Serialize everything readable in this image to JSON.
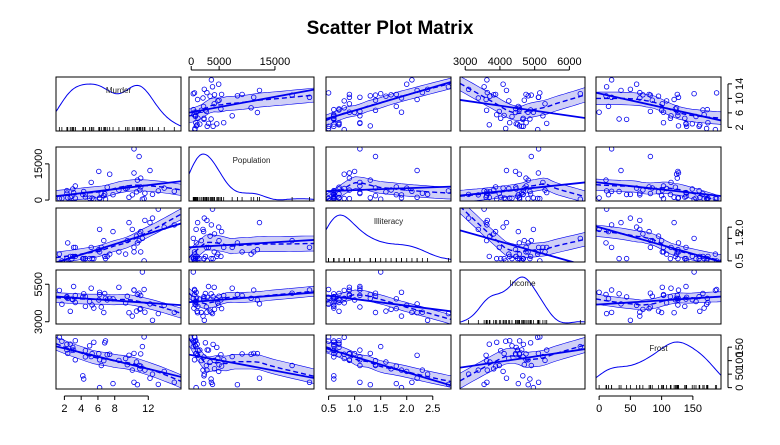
{
  "chart_data": {
    "type": "scatter",
    "title": "Scatter Plot Matrix",
    "variables": [
      "Murder",
      "Population",
      "Illiteracy",
      "Income",
      "Frost"
    ],
    "ranges": {
      "Murder": [
        1.0,
        15.9
      ],
      "Population": [
        -400,
        22000
      ],
      "Illiteracy": [
        0.45,
        2.85
      ],
      "Income": [
        2850,
        6450
      ],
      "Frost": [
        -5,
        195
      ]
    },
    "axis_ticks": {
      "top": [
        {
          "variable": "Population",
          "ticks": [
            0,
            5000,
            15000
          ]
        },
        {
          "variable": "Income",
          "ticks": [
            3000,
            4000,
            5000,
            6000
          ]
        }
      ],
      "bottom": [
        {
          "variable": "Murder",
          "ticks": [
            2,
            4,
            6,
            8,
            12
          ],
          "labels": [
            "2",
            "4",
            "6",
            "8",
            "12"
          ]
        },
        {
          "variable": "Illiteracy",
          "ticks": [
            0.5,
            1.0,
            1.5,
            2.0,
            2.5
          ],
          "labels": [
            "0.5",
            "1.0",
            "1.5",
            "2.0",
            "2.5"
          ]
        },
        {
          "variable": "Frost",
          "ticks": [
            0,
            50,
            100,
            150
          ],
          "labels": [
            "0",
            "50",
            "100",
            "150"
          ]
        }
      ],
      "left": [
        {
          "variable": "Population",
          "ticks": [
            0,
            15000
          ],
          "labels": [
            "0",
            "15000"
          ]
        },
        {
          "variable": "Income",
          "ticks": [
            3000,
            5500
          ],
          "labels": [
            "3000",
            "5500"
          ]
        }
      ],
      "right": [
        {
          "variable": "Murder",
          "ticks": [
            2,
            6,
            10,
            14
          ],
          "labels": [
            "2",
            "6",
            "10",
            "14"
          ]
        },
        {
          "variable": "Illiteracy",
          "ticks": [
            0.5,
            1.5,
            2.0
          ],
          "labels": [
            "0.5",
            "1.5",
            "2.0"
          ]
        },
        {
          "variable": "Frost",
          "ticks": [
            0,
            50,
            100,
            150
          ],
          "labels": [
            "0",
            "50",
            "100",
            "150"
          ]
        }
      ]
    },
    "data": {
      "Murder": [
        15.1,
        11.3,
        7.8,
        10.1,
        10.3,
        6.8,
        3.1,
        6.2,
        10.7,
        13.9,
        6.2,
        5.3,
        10.3,
        7.1,
        2.3,
        4.5,
        10.6,
        13.2,
        2.7,
        8.5,
        3.3,
        11.1,
        2.3,
        12.5,
        9.3,
        5.0,
        2.9,
        11.5,
        3.3,
        5.2,
        9.7,
        10.9,
        11.1,
        1.4,
        7.4,
        6.4,
        4.2,
        6.1,
        2.4,
        11.6,
        1.7,
        11.0,
        12.2,
        4.5,
        5.5,
        9.5,
        4.3,
        6.7,
        3.0,
        6.9
      ],
      "Population": [
        3615,
        365,
        2212,
        2110,
        21198,
        2541,
        3100,
        579,
        8277,
        4931,
        868,
        813,
        11197,
        5313,
        2861,
        2280,
        3387,
        3806,
        1058,
        4122,
        5814,
        9111,
        3921,
        2341,
        4767,
        746,
        1544,
        590,
        812,
        7333,
        1144,
        18076,
        5441,
        637,
        10735,
        2715,
        2284,
        11860,
        931,
        2816,
        681,
        4173,
        12237,
        1203,
        472,
        4981,
        3559,
        1799,
        4589,
        376
      ],
      "Illiteracy": [
        2.1,
        1.5,
        1.8,
        1.9,
        1.1,
        0.7,
        1.1,
        0.9,
        1.3,
        2.0,
        1.9,
        0.6,
        0.9,
        0.7,
        0.5,
        0.6,
        1.6,
        2.8,
        0.7,
        0.9,
        1.1,
        0.9,
        0.6,
        2.4,
        0.8,
        0.6,
        0.6,
        0.5,
        0.7,
        1.1,
        2.2,
        1.4,
        1.8,
        0.8,
        0.8,
        1.1,
        0.6,
        1.0,
        1.3,
        2.3,
        0.5,
        1.7,
        2.2,
        0.6,
        0.6,
        1.4,
        0.6,
        1.4,
        0.7,
        0.6
      ],
      "Income": [
        3624,
        6315,
        4530,
        3378,
        5114,
        4884,
        5348,
        4809,
        4815,
        4091,
        4963,
        4119,
        5107,
        4458,
        4628,
        4669,
        3712,
        3545,
        3694,
        5299,
        4755,
        4751,
        4675,
        3098,
        4254,
        4347,
        4508,
        5149,
        4281,
        5237,
        3601,
        4903,
        3875,
        5087,
        4561,
        3983,
        4660,
        4449,
        4558,
        3635,
        4167,
        3821,
        4188,
        4022,
        3907,
        4701,
        4864,
        3617,
        4468,
        4566
      ],
      "Frost": [
        20,
        152,
        15,
        65,
        20,
        166,
        139,
        103,
        11,
        60,
        0,
        126,
        127,
        122,
        140,
        114,
        95,
        12,
        161,
        101,
        103,
        125,
        160,
        50,
        108,
        155,
        139,
        188,
        174,
        115,
        120,
        82,
        80,
        186,
        124,
        82,
        44,
        126,
        127,
        65,
        172,
        70,
        35,
        137,
        168,
        85,
        32,
        100,
        149,
        173
      ]
    }
  }
}
